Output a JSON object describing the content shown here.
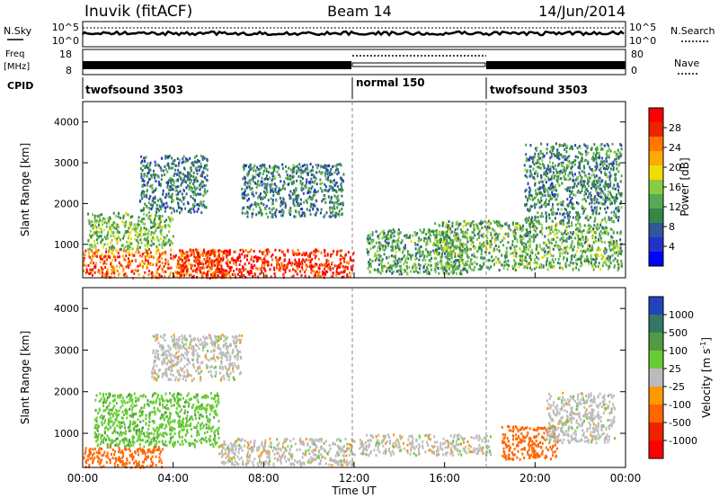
{
  "header": {
    "station": "Inuvik (fitACF)",
    "beam": "Beam 14",
    "date": "14/Jun/2014"
  },
  "top_panels": {
    "nsky_label": "N.Sky",
    "nsearch_label": "N.Search",
    "noise_ticks_left": [
      "10^5",
      "10^0"
    ],
    "noise_ticks_right": [
      "10^5",
      "10^0"
    ],
    "freq_label_line1": "Freq",
    "freq_label_line2": "[MHz]",
    "freq_ticks": [
      "18",
      "8"
    ],
    "nave_label": "Nave",
    "nave_ticks": [
      "80",
      "0"
    ],
    "cpid_label": "CPID",
    "cpid_segments": [
      {
        "label": "twofsound 3503",
        "start_hour": 0,
        "end_hour": 12
      },
      {
        "label": "normal 150",
        "start_hour": 12,
        "end_hour": 18
      },
      {
        "label": "twofsound 3503",
        "start_hour": 18,
        "end_hour": 24
      }
    ]
  },
  "chart_data": [
    {
      "type": "heatmap",
      "name": "power",
      "title": "",
      "xlabel": "",
      "ylabel": "Slant Range [km]",
      "xlim": [
        0,
        24
      ],
      "ylim": [
        180,
        4500
      ],
      "yticks": [
        "1000",
        "2000",
        "3000",
        "4000"
      ],
      "colorbar": {
        "label": "Power [dB]",
        "ticks": [
          "28",
          "24",
          "20",
          "16",
          "12",
          "8",
          "4"
        ],
        "colors": [
          "#ff0000",
          "#ee2200",
          "#ff7700",
          "#ffaa00",
          "#eedd00",
          "#88cc44",
          "#55aa55",
          "#338844",
          "#335599",
          "#2233cc",
          "#0000ff"
        ]
      },
      "regions": [
        {
          "x0": 0.0,
          "x1": 6.5,
          "y0": 200,
          "y1": 900,
          "value": 26
        },
        {
          "x0": 4.2,
          "x1": 12.0,
          "y0": 220,
          "y1": 900,
          "value": 30
        },
        {
          "x0": 0.2,
          "x1": 4.0,
          "y0": 900,
          "y1": 1800,
          "value": 14
        },
        {
          "x0": 2.5,
          "x1": 5.5,
          "y0": 1800,
          "y1": 3200,
          "value": 9
        },
        {
          "x0": 12.5,
          "x1": 17.0,
          "y0": 300,
          "y1": 1400,
          "value": 12
        },
        {
          "x0": 15.5,
          "x1": 23.8,
          "y0": 400,
          "y1": 1600,
          "value": 13
        },
        {
          "x0": 19.5,
          "x1": 23.8,
          "y0": 1600,
          "y1": 3500,
          "value": 10
        },
        {
          "x0": 7.0,
          "x1": 11.5,
          "y0": 1700,
          "y1": 3000,
          "value": 9
        }
      ]
    },
    {
      "type": "heatmap",
      "name": "velocity",
      "title": "",
      "xlabel": "Time UT",
      "ylabel": "Slant Range [km]",
      "xlim": [
        0,
        24
      ],
      "ylim": [
        180,
        4500
      ],
      "yticks": [
        "1000",
        "2000",
        "3000",
        "4000"
      ],
      "xticks": [
        "00:00",
        "04:00",
        "08:00",
        "12:00",
        "16:00",
        "20:00",
        "00:00"
      ],
      "colorbar": {
        "label": "Velocity [m s",
        "label_sup": "-1",
        "label_end": "]",
        "ticks": [
          "1000",
          "500",
          "100",
          "25",
          "-25",
          "-100",
          "-500",
          "-1000"
        ],
        "colors": [
          "#2244bb",
          "#337766",
          "#559944",
          "#66cc33",
          "#bbbbbb",
          "#ff9900",
          "#ff6600",
          "#ee2200",
          "#ff0000"
        ]
      },
      "regions": [
        {
          "x0": 0.0,
          "x1": 3.5,
          "y0": 200,
          "y1": 700,
          "value": -300
        },
        {
          "x0": 0.5,
          "x1": 6.0,
          "y0": 700,
          "y1": 2000,
          "value": 80
        },
        {
          "x0": 6.0,
          "x1": 12.0,
          "y0": 250,
          "y1": 900,
          "value": 0
        },
        {
          "x0": 12.2,
          "x1": 18.0,
          "y0": 500,
          "y1": 1000,
          "value": 0
        },
        {
          "x0": 18.5,
          "x1": 21.0,
          "y0": 400,
          "y1": 1200,
          "value": -200
        },
        {
          "x0": 20.5,
          "x1": 23.5,
          "y0": 800,
          "y1": 2000,
          "value": 0
        },
        {
          "x0": 3.0,
          "x1": 7.0,
          "y0": 2300,
          "y1": 3400,
          "value": 0
        }
      ]
    }
  ]
}
